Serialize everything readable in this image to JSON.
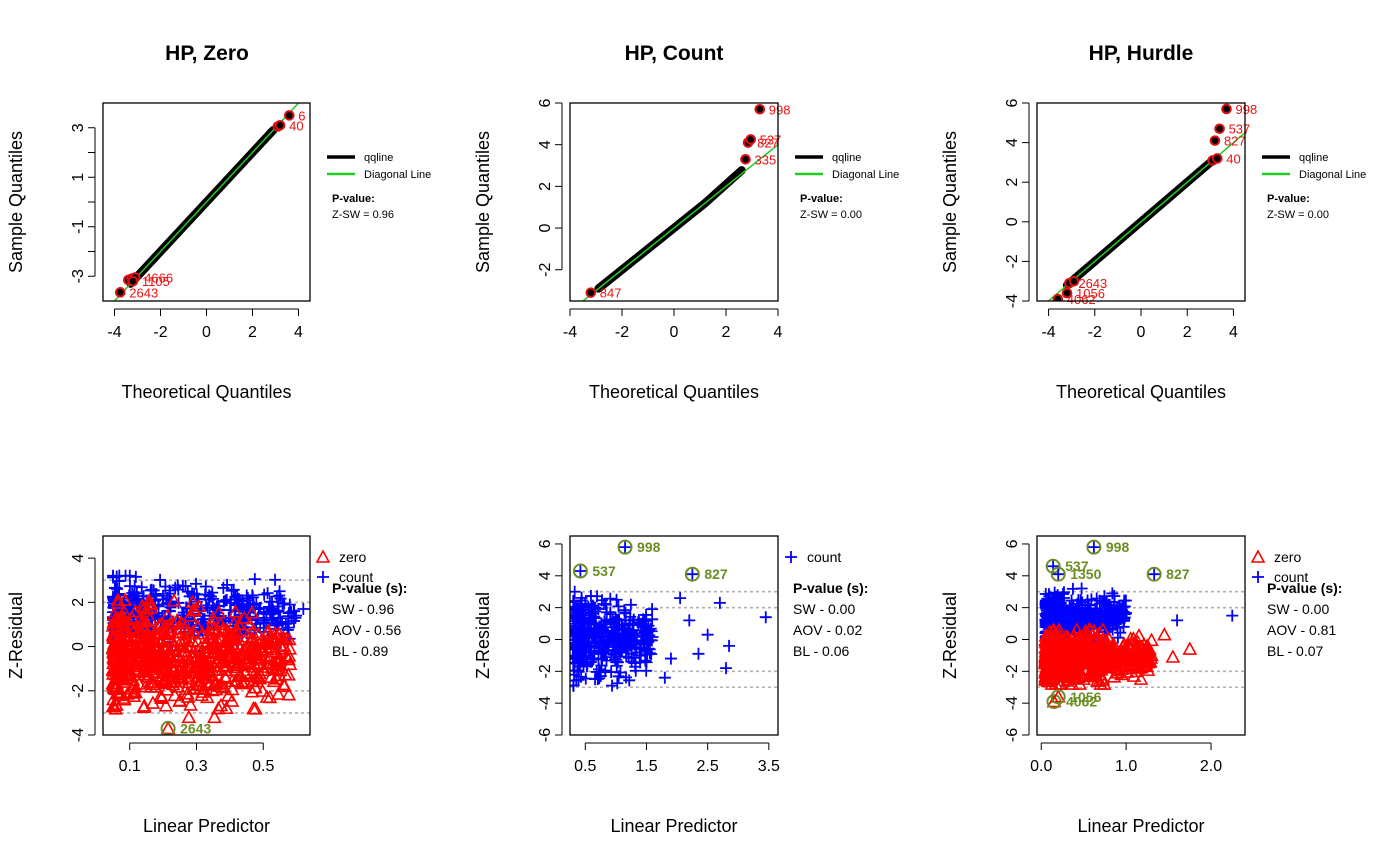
{
  "chart_data": [
    {
      "id": "qq_zero",
      "type": "scatter",
      "title": "HP, Zero",
      "xlabel": "Theoretical Quantiles",
      "ylabel": "Sample Quantiles",
      "xlim": [
        -4.5,
        4.5
      ],
      "ylim": [
        -4.0,
        4.0
      ],
      "xticks": [
        -4,
        -2,
        0,
        2,
        4
      ],
      "yticks": [
        -3,
        -2,
        -1,
        0,
        1,
        2,
        3
      ],
      "ytick_labels": [
        "-3",
        "",
        "-1",
        "",
        "1",
        "",
        "3"
      ],
      "qq_range": [
        -3.3,
        2.9
      ],
      "outliers": [
        {
          "x": -3.75,
          "y": -3.65,
          "label": "2643"
        },
        {
          "x": -3.4,
          "y": -3.15,
          "label": ""
        },
        {
          "x": -3.25,
          "y": -3.1,
          "label": ""
        },
        {
          "x": -3.1,
          "y": -3.05,
          "label": "4666"
        },
        {
          "x": -3.2,
          "y": -3.2,
          "label": "1105"
        },
        {
          "x": 3.1,
          "y": 3.05,
          "label": ""
        },
        {
          "x": 3.2,
          "y": 3.1,
          "label": "40"
        },
        {
          "x": 3.6,
          "y": 3.5,
          "label": "6"
        }
      ],
      "legend": [
        "qqline",
        "Diagonal Line"
      ],
      "pvalue_title": "P-value:",
      "pvalue_text": "Z-SW = 0.96"
    },
    {
      "id": "qq_count",
      "type": "scatter",
      "title": "HP, Count",
      "xlabel": "Theoretical Quantiles",
      "ylabel": "Sample Quantiles",
      "xlim": [
        -4.0,
        4.0
      ],
      "ylim": [
        -3.5,
        6.0
      ],
      "xticks": [
        -4,
        -2,
        0,
        2,
        4
      ],
      "yticks": [
        -2,
        0,
        2,
        4,
        6
      ],
      "qq_range": [
        -2.9,
        2.6
      ],
      "outliers": [
        {
          "x": -3.2,
          "y": -3.1,
          "label": "847"
        },
        {
          "x": 2.75,
          "y": 3.3,
          "label": "335"
        },
        {
          "x": 2.85,
          "y": 4.1,
          "label": "827"
        },
        {
          "x": 2.95,
          "y": 4.25,
          "label": "537"
        },
        {
          "x": 3.3,
          "y": 5.7,
          "label": "998"
        }
      ],
      "legend": [
        "qqline",
        "Diagonal Line"
      ],
      "pvalue_title": "P-value:",
      "pvalue_text": "Z-SW = 0.00"
    },
    {
      "id": "qq_hurdle",
      "type": "scatter",
      "title": "HP, Hurdle",
      "xlabel": "Theoretical Quantiles",
      "ylabel": "Sample Quantiles",
      "xlim": [
        -4.5,
        4.5
      ],
      "ylim": [
        -4.0,
        6.0
      ],
      "xticks": [
        -4,
        -2,
        0,
        2,
        4
      ],
      "yticks": [
        -4,
        -2,
        0,
        2,
        4,
        6
      ],
      "qq_range": [
        -3.2,
        3.0
      ],
      "outliers": [
        {
          "x": -3.6,
          "y": -3.9,
          "label": "4062"
        },
        {
          "x": -3.2,
          "y": -3.6,
          "label": "1056"
        },
        {
          "x": -3.1,
          "y": -3.1,
          "label": "2643"
        },
        {
          "x": -2.9,
          "y": -3.0,
          "label": ""
        },
        {
          "x": 3.1,
          "y": 3.1,
          "label": ""
        },
        {
          "x": 3.3,
          "y": 3.2,
          "label": "40"
        },
        {
          "x": 3.2,
          "y": 4.1,
          "label": "827"
        },
        {
          "x": 3.4,
          "y": 4.7,
          "label": "537"
        },
        {
          "x": 3.7,
          "y": 5.7,
          "label": "998"
        }
      ],
      "legend": [
        "qqline",
        "Diagonal Line"
      ],
      "pvalue_title": "P-value:",
      "pvalue_text": "Z-SW = 0.00"
    },
    {
      "id": "res_zero",
      "type": "scatter",
      "xlabel": "Linear Predictor",
      "ylabel": "Z-Residual",
      "xlim": [
        0.02,
        0.64
      ],
      "ylim": [
        -4.0,
        5.0
      ],
      "xticks": [
        0.1,
        0.3,
        0.5
      ],
      "xtick_labels": [
        "0.1",
        "0.3",
        "0.5"
      ],
      "yticks": [
        -4,
        -2,
        0,
        2,
        4
      ],
      "ref_lines": [
        -3,
        -2,
        2,
        3
      ],
      "series": [
        {
          "name": "zero",
          "marker": "triangle",
          "color": "#ff0000",
          "band": [
            -3.2,
            2.1
          ],
          "x_range": [
            0.05,
            0.58
          ]
        },
        {
          "name": "count",
          "marker": "plus",
          "color": "#0000ff",
          "band": [
            -0.2,
            3.2
          ],
          "x_range": [
            0.05,
            0.6
          ]
        }
      ],
      "highlights": [
        {
          "x": 0.215,
          "y": -3.7,
          "label": "2643",
          "series": "zero"
        }
      ],
      "extra_points": [
        {
          "x": 0.62,
          "y": 1.7,
          "series": "count"
        },
        {
          "x": 0.52,
          "y": -2.3,
          "series": "zero"
        },
        {
          "x": 0.58,
          "y": -0.8,
          "series": "zero"
        }
      ],
      "legend": [
        "zero",
        "count"
      ],
      "pvalue_title": "P-value (s):",
      "pvalue_lines": [
        "SW - 0.96",
        "AOV - 0.56",
        "BL - 0.89"
      ]
    },
    {
      "id": "res_count",
      "type": "scatter",
      "xlabel": "Linear Predictor",
      "ylabel": "Z-Residual",
      "xlim": [
        0.25,
        3.65
      ],
      "ylim": [
        -6.0,
        6.5
      ],
      "xticks": [
        0.5,
        1.5,
        2.5,
        3.5
      ],
      "xtick_labels": [
        "0.5",
        "1.5",
        "2.5",
        "3.5"
      ],
      "yticks": [
        -6,
        -4,
        -2,
        0,
        2,
        4,
        6
      ],
      "ref_lines": [
        -3,
        -2,
        2,
        3
      ],
      "series": [
        {
          "name": "count",
          "marker": "plus",
          "color": "#0000ff",
          "band": [
            -2.9,
            3.0
          ],
          "x_range": [
            0.3,
            1.6
          ]
        }
      ],
      "highlights": [
        {
          "x": 0.42,
          "y": 4.3,
          "label": "537",
          "series": "count"
        },
        {
          "x": 1.15,
          "y": 5.8,
          "label": "998",
          "series": "count"
        },
        {
          "x": 2.25,
          "y": 4.1,
          "label": "827",
          "series": "count"
        }
      ],
      "extra_points": [
        {
          "x": 3.45,
          "y": 1.4,
          "series": "count"
        },
        {
          "x": 2.85,
          "y": -0.4,
          "series": "count"
        },
        {
          "x": 2.8,
          "y": -1.8,
          "series": "count"
        },
        {
          "x": 2.7,
          "y": 2.3,
          "series": "count"
        },
        {
          "x": 2.5,
          "y": 0.3,
          "series": "count"
        },
        {
          "x": 2.35,
          "y": -0.9,
          "series": "count"
        },
        {
          "x": 2.2,
          "y": 1.2,
          "series": "count"
        },
        {
          "x": 2.05,
          "y": 2.6,
          "series": "count"
        },
        {
          "x": 1.9,
          "y": -1.2,
          "series": "count"
        },
        {
          "x": 1.8,
          "y": -2.4,
          "series": "count"
        }
      ],
      "legend": [
        "count"
      ],
      "pvalue_title": "P-value (s):",
      "pvalue_lines": [
        "SW - 0.00",
        "AOV - 0.02",
        "BL - 0.06"
      ]
    },
    {
      "id": "res_hurdle",
      "type": "scatter",
      "xlabel": "Linear Predictor",
      "ylabel": "Z-Residual",
      "xlim": [
        -0.05,
        2.4
      ],
      "ylim": [
        -6.0,
        6.5
      ],
      "xticks": [
        0.0,
        1.0,
        2.0
      ],
      "xtick_labels": [
        "0.0",
        "1.0",
        "2.0"
      ],
      "yticks": [
        -6,
        -4,
        -2,
        0,
        2,
        4,
        6
      ],
      "ref_lines": [
        -3,
        -2,
        2,
        3
      ],
      "series": [
        {
          "name": "zero",
          "marker": "triangle",
          "color": "#ff0000",
          "band": [
            -2.8,
            0.6
          ],
          "x_range": [
            0.05,
            1.3
          ]
        },
        {
          "name": "count",
          "marker": "plus",
          "color": "#0000ff",
          "band": [
            -0.4,
            3.2
          ],
          "x_range": [
            0.05,
            1.0
          ]
        }
      ],
      "highlights": [
        {
          "x": 0.15,
          "y": -3.9,
          "label": "4062",
          "series": "zero"
        },
        {
          "x": 0.2,
          "y": -3.6,
          "label": "1056",
          "series": "zero"
        },
        {
          "x": 0.14,
          "y": 4.6,
          "label": "537",
          "series": "count"
        },
        {
          "x": 0.2,
          "y": 4.1,
          "label": "1350",
          "series": "count"
        },
        {
          "x": 0.62,
          "y": 5.8,
          "label": "998",
          "series": "count"
        },
        {
          "x": 1.33,
          "y": 4.1,
          "label": "827",
          "series": "count"
        }
      ],
      "extra_points": [
        {
          "x": 2.25,
          "y": 1.5,
          "series": "count"
        },
        {
          "x": 1.75,
          "y": -0.6,
          "series": "zero"
        },
        {
          "x": 1.55,
          "y": -1.1,
          "series": "zero"
        },
        {
          "x": 1.45,
          "y": 0.3,
          "series": "zero"
        },
        {
          "x": 1.6,
          "y": 1.2,
          "series": "count"
        },
        {
          "x": 1.2,
          "y": -1.6,
          "series": "zero"
        }
      ],
      "legend": [
        "zero",
        "count"
      ],
      "pvalue_title": "P-value (s):",
      "pvalue_lines": [
        "SW - 0.00",
        "AOV - 0.81",
        "BL - 0.07"
      ]
    }
  ]
}
